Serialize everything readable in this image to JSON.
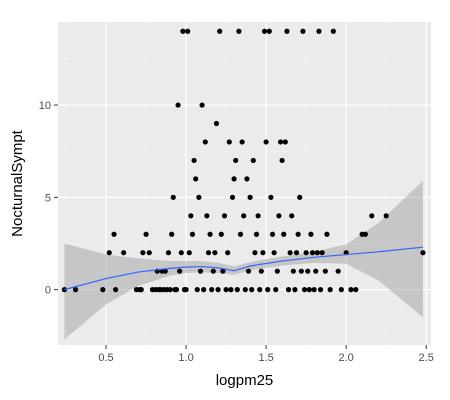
{
  "chart_data": {
    "type": "scatter",
    "xlabel": "logpm25",
    "ylabel": "NocturnalSympt",
    "xlim": [
      0.2,
      2.53
    ],
    "ylim": [
      -3.0,
      14.5
    ],
    "x_ticks": [
      0.5,
      1.0,
      1.5,
      2.0,
      2.5
    ],
    "x_tick_labels": [
      "0.5",
      "1.0",
      "1.5",
      "2.0",
      "2.5"
    ],
    "y_ticks": [
      0,
      5,
      10
    ],
    "y_tick_labels": [
      "0",
      "5",
      "10"
    ],
    "grid": true,
    "colors": {
      "panel": "#ebebeb",
      "grid_major": "#ffffff",
      "grid_minor": "#f5f5f5",
      "points": "#000000",
      "smooth_line": "#3366ff",
      "ribbon": "#999999"
    },
    "points": [
      [
        0.24,
        0
      ],
      [
        0.31,
        0
      ],
      [
        0.48,
        0
      ],
      [
        0.52,
        2
      ],
      [
        0.55,
        3
      ],
      [
        0.56,
        0
      ],
      [
        0.61,
        2
      ],
      [
        0.69,
        0
      ],
      [
        0.71,
        0
      ],
      [
        0.72,
        0
      ],
      [
        0.73,
        2
      ],
      [
        0.75,
        3
      ],
      [
        0.77,
        2
      ],
      [
        0.79,
        0
      ],
      [
        0.81,
        0
      ],
      [
        0.82,
        1
      ],
      [
        0.83,
        0
      ],
      [
        0.84,
        0
      ],
      [
        0.85,
        1
      ],
      [
        0.86,
        0
      ],
      [
        0.87,
        1
      ],
      [
        0.88,
        0
      ],
      [
        0.89,
        2
      ],
      [
        0.9,
        0
      ],
      [
        0.91,
        3
      ],
      [
        0.92,
        5
      ],
      [
        0.93,
        0
      ],
      [
        0.94,
        0
      ],
      [
        0.95,
        10
      ],
      [
        0.96,
        1
      ],
      [
        0.97,
        2
      ],
      [
        0.98,
        14
      ],
      [
        0.99,
        0
      ],
      [
        1.0,
        0
      ],
      [
        1.01,
        14
      ],
      [
        1.02,
        2
      ],
      [
        1.03,
        4
      ],
      [
        1.04,
        3
      ],
      [
        1.05,
        7
      ],
      [
        1.06,
        6
      ],
      [
        1.07,
        0
      ],
      [
        1.08,
        5
      ],
      [
        1.09,
        1
      ],
      [
        1.1,
        10
      ],
      [
        1.11,
        0
      ],
      [
        1.12,
        8
      ],
      [
        1.13,
        4
      ],
      [
        1.14,
        2
      ],
      [
        1.15,
        3
      ],
      [
        1.16,
        0
      ],
      [
        1.17,
        1
      ],
      [
        1.18,
        2
      ],
      [
        1.19,
        9
      ],
      [
        1.2,
        0
      ],
      [
        1.21,
        14
      ],
      [
        1.22,
        3
      ],
      [
        1.23,
        1
      ],
      [
        1.24,
        4
      ],
      [
        1.25,
        0
      ],
      [
        1.26,
        2
      ],
      [
        1.27,
        8
      ],
      [
        1.28,
        0
      ],
      [
        1.29,
        5
      ],
      [
        1.3,
        6
      ],
      [
        1.31,
        7
      ],
      [
        1.32,
        0
      ],
      [
        1.33,
        14
      ],
      [
        1.34,
        3
      ],
      [
        1.35,
        8
      ],
      [
        1.36,
        4
      ],
      [
        1.37,
        0
      ],
      [
        1.38,
        6
      ],
      [
        1.39,
        1
      ],
      [
        1.4,
        5
      ],
      [
        1.41,
        0
      ],
      [
        1.42,
        7
      ],
      [
        1.43,
        2
      ],
      [
        1.44,
        3
      ],
      [
        1.45,
        4
      ],
      [
        1.46,
        0
      ],
      [
        1.47,
        1
      ],
      [
        1.48,
        2
      ],
      [
        1.49,
        14
      ],
      [
        1.5,
        8
      ],
      [
        1.51,
        0
      ],
      [
        1.52,
        14
      ],
      [
        1.53,
        5
      ],
      [
        1.54,
        3
      ],
      [
        1.55,
        2
      ],
      [
        1.56,
        0
      ],
      [
        1.57,
        1
      ],
      [
        1.58,
        4
      ],
      [
        1.59,
        8
      ],
      [
        1.6,
        7
      ],
      [
        1.61,
        3
      ],
      [
        1.62,
        8
      ],
      [
        1.63,
        14
      ],
      [
        1.64,
        0
      ],
      [
        1.65,
        2
      ],
      [
        1.66,
        4
      ],
      [
        1.67,
        1
      ],
      [
        1.68,
        0
      ],
      [
        1.69,
        2
      ],
      [
        1.7,
        3
      ],
      [
        1.71,
        5
      ],
      [
        1.72,
        1
      ],
      [
        1.73,
        14
      ],
      [
        1.74,
        0
      ],
      [
        1.75,
        2
      ],
      [
        1.76,
        1
      ],
      [
        1.77,
        0
      ],
      [
        1.78,
        3
      ],
      [
        1.79,
        2
      ],
      [
        1.8,
        0
      ],
      [
        1.81,
        1
      ],
      [
        1.82,
        2
      ],
      [
        1.83,
        14
      ],
      [
        1.84,
        0
      ],
      [
        1.85,
        2
      ],
      [
        1.87,
        1
      ],
      [
        1.88,
        3
      ],
      [
        1.9,
        0
      ],
      [
        1.92,
        14
      ],
      [
        1.95,
        1
      ],
      [
        1.97,
        0
      ],
      [
        2.0,
        2
      ],
      [
        2.03,
        0
      ],
      [
        2.06,
        0
      ],
      [
        2.1,
        3
      ],
      [
        2.12,
        3
      ],
      [
        2.16,
        4
      ],
      [
        2.25,
        4
      ],
      [
        2.48,
        2
      ]
    ],
    "smooth": {
      "x": [
        0.24,
        0.5,
        0.7,
        0.9,
        1.0,
        1.1,
        1.2,
        1.3,
        1.4,
        1.6,
        1.8,
        2.0,
        2.2,
        2.48
      ],
      "y": [
        0.0,
        0.6,
        0.95,
        1.15,
        1.22,
        1.25,
        1.18,
        1.02,
        1.28,
        1.55,
        1.75,
        1.9,
        2.05,
        2.3
      ],
      "lower": [
        -2.7,
        -0.8,
        0.2,
        0.75,
        0.9,
        0.95,
        0.9,
        0.8,
        1.05,
        1.3,
        1.45,
        1.4,
        0.5,
        -1.5
      ],
      "upper": [
        2.5,
        1.9,
        1.7,
        1.55,
        1.55,
        1.55,
        1.45,
        1.25,
        1.5,
        1.8,
        2.05,
        2.45,
        3.6,
        5.9
      ]
    }
  }
}
